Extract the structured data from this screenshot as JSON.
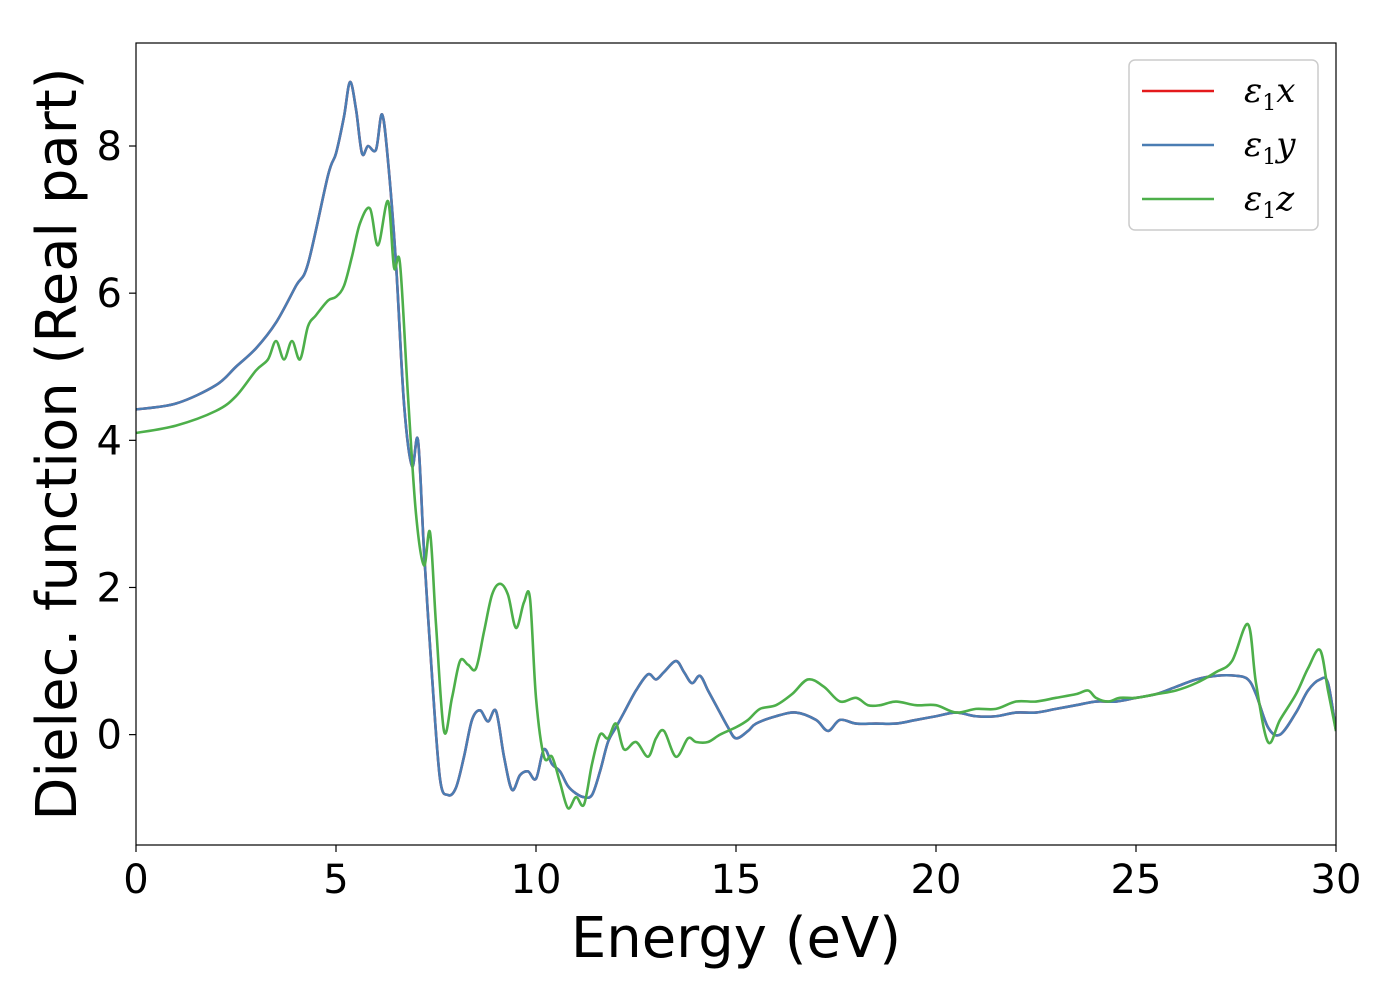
{
  "chart_data": {
    "type": "line",
    "title": "",
    "xlabel": "Energy (eV)",
    "ylabel": "Dielec. function (Real part)",
    "xlim": [
      0,
      30
    ],
    "ylim": [
      -1.5,
      9.4
    ],
    "xticks": [
      0,
      5,
      10,
      15,
      20,
      25,
      30
    ],
    "yticks": [
      0,
      2,
      4,
      6,
      8
    ],
    "grid": false,
    "legend_position": "top-right",
    "series": [
      {
        "name": "ε₁x",
        "legend_main": "ε",
        "legend_sub": "1",
        "legend_suffix": "x",
        "color": "#e41a1c",
        "x": [
          0,
          1,
          2,
          2.5,
          3,
          3.5,
          4,
          4.3,
          4.8,
          5.0,
          5.2,
          5.35,
          5.5,
          5.65,
          5.8,
          6.0,
          6.15,
          6.3,
          6.5,
          6.7,
          6.9,
          7.05,
          7.2,
          7.4,
          7.6,
          7.8,
          8.0,
          8.2,
          8.4,
          8.6,
          8.8,
          9.0,
          9.2,
          9.4,
          9.6,
          9.8,
          10.0,
          10.2,
          10.4,
          10.6,
          10.8,
          11.0,
          11.2,
          11.4,
          11.6,
          11.8,
          12.0,
          12.2,
          12.5,
          12.8,
          13.0,
          13.2,
          13.5,
          13.7,
          13.9,
          14.1,
          14.3,
          14.5,
          14.8,
          15.0,
          15.3,
          15.5,
          16.0,
          16.5,
          17.0,
          17.3,
          17.6,
          18.0,
          18.5,
          19.0,
          19.5,
          20.0,
          20.5,
          21.0,
          21.5,
          22.0,
          22.5,
          23.0,
          23.5,
          24.0,
          24.5,
          25.0,
          25.5,
          26.0,
          26.5,
          27.0,
          27.5,
          27.8,
          28.0,
          28.3,
          28.6,
          29.0,
          29.3,
          29.6,
          29.8,
          30.0
        ],
        "values": [
          4.42,
          4.5,
          4.75,
          5.0,
          5.25,
          5.6,
          6.1,
          6.4,
          7.6,
          7.9,
          8.4,
          8.87,
          8.5,
          7.9,
          8.0,
          7.95,
          8.43,
          7.8,
          6.4,
          4.5,
          3.65,
          4.0,
          2.5,
          0.8,
          -0.6,
          -0.82,
          -0.72,
          -0.3,
          0.2,
          0.33,
          0.18,
          0.32,
          -0.3,
          -0.75,
          -0.55,
          -0.5,
          -0.6,
          -0.2,
          -0.4,
          -0.5,
          -0.7,
          -0.8,
          -0.85,
          -0.82,
          -0.5,
          -0.1,
          0.1,
          0.3,
          0.6,
          0.82,
          0.75,
          0.85,
          1.0,
          0.85,
          0.7,
          0.8,
          0.6,
          0.4,
          0.1,
          -0.05,
          0.05,
          0.15,
          0.25,
          0.3,
          0.2,
          0.05,
          0.2,
          0.15,
          0.15,
          0.15,
          0.2,
          0.25,
          0.3,
          0.25,
          0.25,
          0.3,
          0.3,
          0.35,
          0.4,
          0.45,
          0.45,
          0.5,
          0.55,
          0.65,
          0.75,
          0.8,
          0.8,
          0.75,
          0.55,
          0.1,
          0.0,
          0.3,
          0.6,
          0.75,
          0.7,
          0.05
        ]
      },
      {
        "name": "ε₁y",
        "legend_main": "ε",
        "legend_sub": "1",
        "legend_suffix": "y",
        "color": "#4a7db3",
        "x": [
          0,
          1,
          2,
          2.5,
          3,
          3.5,
          4,
          4.3,
          4.8,
          5.0,
          5.2,
          5.35,
          5.5,
          5.65,
          5.8,
          6.0,
          6.15,
          6.3,
          6.5,
          6.7,
          6.9,
          7.05,
          7.2,
          7.4,
          7.6,
          7.8,
          8.0,
          8.2,
          8.4,
          8.6,
          8.8,
          9.0,
          9.2,
          9.4,
          9.6,
          9.8,
          10.0,
          10.2,
          10.4,
          10.6,
          10.8,
          11.0,
          11.2,
          11.4,
          11.6,
          11.8,
          12.0,
          12.2,
          12.5,
          12.8,
          13.0,
          13.2,
          13.5,
          13.7,
          13.9,
          14.1,
          14.3,
          14.5,
          14.8,
          15.0,
          15.3,
          15.5,
          16.0,
          16.5,
          17.0,
          17.3,
          17.6,
          18.0,
          18.5,
          19.0,
          19.5,
          20.0,
          20.5,
          21.0,
          21.5,
          22.0,
          22.5,
          23.0,
          23.5,
          24.0,
          24.5,
          25.0,
          25.5,
          26.0,
          26.5,
          27.0,
          27.5,
          27.8,
          28.0,
          28.3,
          28.6,
          29.0,
          29.3,
          29.6,
          29.8,
          30.0
        ],
        "values": [
          4.42,
          4.5,
          4.75,
          5.0,
          5.25,
          5.6,
          6.1,
          6.4,
          7.6,
          7.9,
          8.4,
          8.87,
          8.5,
          7.9,
          8.0,
          7.95,
          8.43,
          7.8,
          6.4,
          4.5,
          3.65,
          4.0,
          2.5,
          0.8,
          -0.6,
          -0.82,
          -0.72,
          -0.3,
          0.2,
          0.33,
          0.18,
          0.32,
          -0.3,
          -0.75,
          -0.55,
          -0.5,
          -0.6,
          -0.2,
          -0.4,
          -0.5,
          -0.7,
          -0.8,
          -0.85,
          -0.82,
          -0.5,
          -0.1,
          0.1,
          0.3,
          0.6,
          0.82,
          0.75,
          0.85,
          1.0,
          0.85,
          0.7,
          0.8,
          0.6,
          0.4,
          0.1,
          -0.05,
          0.05,
          0.15,
          0.25,
          0.3,
          0.2,
          0.05,
          0.2,
          0.15,
          0.15,
          0.15,
          0.2,
          0.25,
          0.3,
          0.25,
          0.25,
          0.3,
          0.3,
          0.35,
          0.4,
          0.45,
          0.45,
          0.5,
          0.55,
          0.65,
          0.75,
          0.8,
          0.8,
          0.75,
          0.55,
          0.1,
          0.0,
          0.3,
          0.6,
          0.75,
          0.7,
          0.05
        ]
      },
      {
        "name": "ε₁z",
        "legend_main": "ε",
        "legend_sub": "1",
        "legend_suffix": "z",
        "color": "#4daf4a",
        "x": [
          0,
          1,
          2,
          2.5,
          3.0,
          3.3,
          3.5,
          3.7,
          3.9,
          4.1,
          4.3,
          4.5,
          4.8,
          5.0,
          5.2,
          5.4,
          5.6,
          5.85,
          6.05,
          6.3,
          6.45,
          6.6,
          6.8,
          7.0,
          7.2,
          7.35,
          7.5,
          7.7,
          7.9,
          8.1,
          8.3,
          8.5,
          8.7,
          8.9,
          9.1,
          9.3,
          9.5,
          9.7,
          9.85,
          10.0,
          10.2,
          10.4,
          10.6,
          10.8,
          11.0,
          11.2,
          11.4,
          11.6,
          11.8,
          12.0,
          12.2,
          12.5,
          12.8,
          13.0,
          13.2,
          13.5,
          13.8,
          14.0,
          14.3,
          14.6,
          15.0,
          15.3,
          15.6,
          16.0,
          16.4,
          16.8,
          17.2,
          17.6,
          18.0,
          18.3,
          18.6,
          19.0,
          19.5,
          20.0,
          20.5,
          21.0,
          21.5,
          22.0,
          22.5,
          23.0,
          23.5,
          23.8,
          24.0,
          24.3,
          24.6,
          25.0,
          25.5,
          26.0,
          26.5,
          27.0,
          27.4,
          27.8,
          28.0,
          28.3,
          28.6,
          29.0,
          29.3,
          29.6,
          29.8,
          30.0
        ],
        "values": [
          4.1,
          4.2,
          4.4,
          4.6,
          4.95,
          5.1,
          5.35,
          5.1,
          5.35,
          5.1,
          5.55,
          5.7,
          5.9,
          5.95,
          6.1,
          6.5,
          6.95,
          7.15,
          6.65,
          7.25,
          6.35,
          6.4,
          4.6,
          3.0,
          2.3,
          2.75,
          1.5,
          0.05,
          0.5,
          1.0,
          0.95,
          0.9,
          1.4,
          1.9,
          2.05,
          1.9,
          1.45,
          1.8,
          1.85,
          0.5,
          -0.3,
          -0.3,
          -0.65,
          -1.0,
          -0.85,
          -0.95,
          -0.4,
          0.0,
          -0.05,
          0.15,
          -0.2,
          -0.1,
          -0.3,
          -0.05,
          0.05,
          -0.3,
          -0.05,
          -0.1,
          -0.1,
          0.0,
          0.1,
          0.2,
          0.35,
          0.4,
          0.55,
          0.75,
          0.65,
          0.45,
          0.5,
          0.4,
          0.4,
          0.45,
          0.4,
          0.4,
          0.3,
          0.35,
          0.35,
          0.45,
          0.45,
          0.5,
          0.55,
          0.6,
          0.5,
          0.45,
          0.5,
          0.5,
          0.55,
          0.6,
          0.7,
          0.85,
          1.0,
          1.5,
          0.7,
          -0.1,
          0.2,
          0.55,
          0.9,
          1.15,
          0.6,
          0.05
        ]
      }
    ]
  }
}
